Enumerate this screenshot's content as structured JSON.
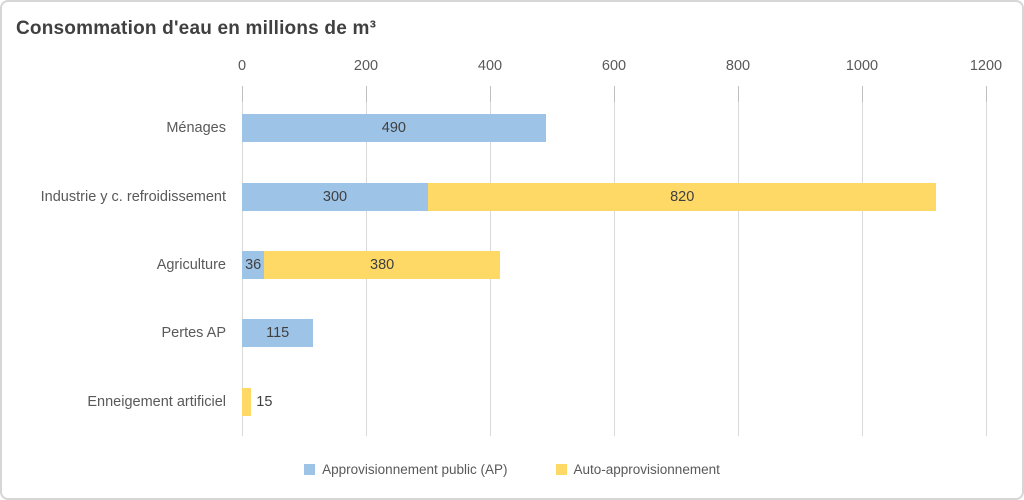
{
  "chart_data": {
    "type": "bar",
    "orientation": "horizontal",
    "stacked": true,
    "title": "Consommation d'eau en millions de m³",
    "categories": [
      "Ménages",
      "Industrie y c. refroidissement",
      "Agriculture",
      "Pertes AP",
      "Enneigement artificiel"
    ],
    "series": [
      {
        "name": "Approvisionnement public (AP)",
        "color": "#9DC3E6",
        "values": [
          490,
          300,
          36,
          115,
          null
        ]
      },
      {
        "name": "Auto-approvisionnement",
        "color": "#FFD966",
        "values": [
          null,
          820,
          380,
          null,
          15
        ]
      }
    ],
    "xlim": [
      0,
      1200
    ],
    "xticks": [
      "0",
      "200",
      "400",
      "600",
      "800",
      "1000",
      "1200"
    ],
    "grid": true,
    "legend_position": "bottom",
    "colors": {
      "grid": "#D9D9D9",
      "tick": "#BFBFBF",
      "title_text": "#404040",
      "axis_text": "#595959",
      "data_label_text": "#404040",
      "border": "#D6D6D6"
    }
  }
}
